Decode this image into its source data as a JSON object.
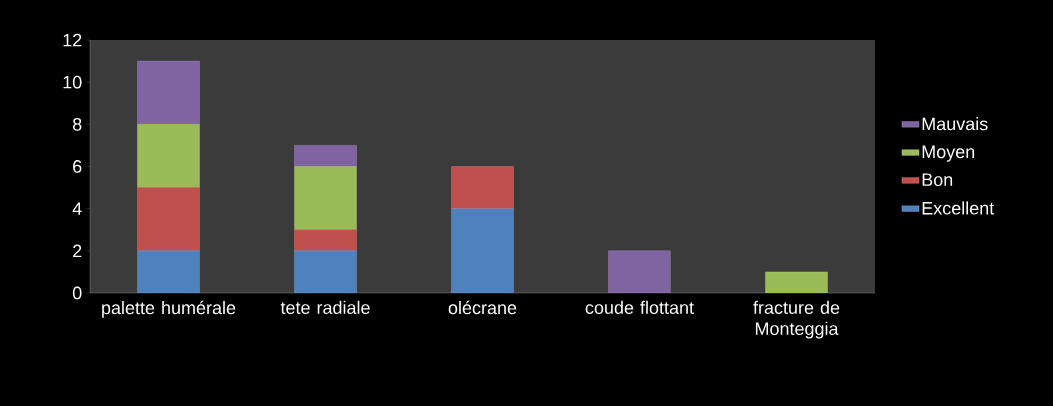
{
  "chart_data": {
    "type": "bar",
    "stacked": true,
    "legend": "right",
    "categories": [
      "palette humérale",
      "tete radiale",
      "olécrane",
      "coude flottant",
      "fracture de Monteggia"
    ],
    "series": [
      {
        "name": "Excellent",
        "color": "#4f81bd",
        "values": [
          2,
          2,
          4,
          0,
          0
        ]
      },
      {
        "name": "Bon",
        "color": "#c0504d",
        "values": [
          3,
          1,
          2,
          0,
          0
        ]
      },
      {
        "name": "Moyen",
        "color": "#9bbb59",
        "values": [
          3,
          3,
          0,
          0,
          1
        ]
      },
      {
        "name": "Mauvais",
        "color": "#8064a2",
        "values": [
          3,
          1,
          0,
          2,
          0
        ]
      }
    ],
    "ylim": [
      0,
      12
    ],
    "yticks": [
      0,
      2,
      4,
      6,
      8,
      10,
      12
    ]
  }
}
